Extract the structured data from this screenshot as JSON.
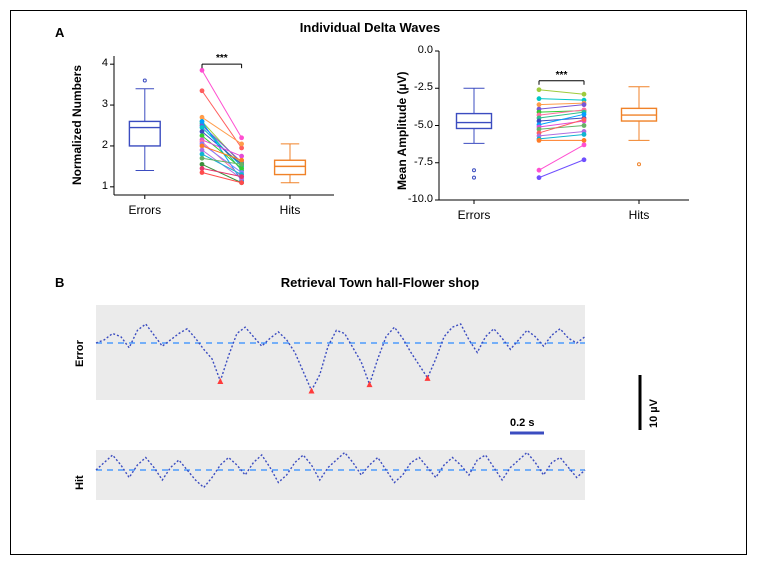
{
  "panelA": {
    "letter": "A",
    "title": "Individual Delta Waves",
    "sig_label": "***",
    "chartLeft": {
      "ylabel": "Normalized Numbers",
      "ymin": 0.8,
      "ymax": 4.2,
      "yticks": [
        1,
        2,
        3,
        4
      ],
      "categories": [
        "Errors",
        "Hits"
      ],
      "box_errors": {
        "q1": 2.0,
        "median": 2.45,
        "q3": 2.6,
        "whisker_low": 1.4,
        "whisker_high": 3.4,
        "outliers": [
          3.6
        ],
        "color": "#3b4cc0"
      },
      "box_hits": {
        "q1": 1.3,
        "median": 1.5,
        "q3": 1.65,
        "whisker_low": 1.1,
        "whisker_high": 2.05,
        "outliers": [],
        "color": "#f08228"
      },
      "lines": [
        {
          "e": 3.85,
          "h": 2.2,
          "c": "#ff4fd1"
        },
        {
          "e": 3.35,
          "h": 1.95,
          "c": "#ff5e5e"
        },
        {
          "e": 2.7,
          "h": 2.05,
          "c": "#ff9c4a"
        },
        {
          "e": 2.6,
          "h": 1.55,
          "c": "#9fcb3b"
        },
        {
          "e": 2.55,
          "h": 1.4,
          "c": "#2fbf8f"
        },
        {
          "e": 2.5,
          "h": 1.6,
          "c": "#7656d6"
        },
        {
          "e": 2.45,
          "h": 1.5,
          "c": "#00c7c7"
        },
        {
          "e": 2.35,
          "h": 1.55,
          "c": "#3b4cc0"
        },
        {
          "e": 2.6,
          "h": 1.15,
          "c": "#00a0ff"
        },
        {
          "e": 2.25,
          "h": 1.45,
          "c": "#32cd32"
        },
        {
          "e": 2.15,
          "h": 1.75,
          "c": "#e34bd6"
        },
        {
          "e": 2.1,
          "h": 1.25,
          "c": "#ff6fa0"
        },
        {
          "e": 2.05,
          "h": 1.35,
          "c": "#7f7fff"
        },
        {
          "e": 2.0,
          "h": 1.65,
          "c": "#ff7b25"
        },
        {
          "e": 1.9,
          "h": 1.2,
          "c": "#b06fe0"
        },
        {
          "e": 1.8,
          "h": 1.3,
          "c": "#0fb5d1"
        },
        {
          "e": 1.7,
          "h": 1.55,
          "c": "#66b266"
        },
        {
          "e": 1.55,
          "h": 1.1,
          "c": "#3b8f3b"
        },
        {
          "e": 1.45,
          "h": 1.25,
          "c": "#e6346e"
        },
        {
          "e": 1.35,
          "h": 1.1,
          "c": "#ff4b4b"
        }
      ]
    },
    "chartRight": {
      "ylabel": "Mean Amplitude  (µV)",
      "ymin": -10.0,
      "ymax": 0.0,
      "yticks": [
        -10.0,
        -7.5,
        -5.0,
        -2.5,
        0.0
      ],
      "categories": [
        "Errors",
        "Hits"
      ],
      "box_errors": {
        "q1": -5.2,
        "median": -4.8,
        "q3": -4.2,
        "whisker_low": -6.2,
        "whisker_high": -2.5,
        "outliers": [
          -8.0,
          -8.5
        ],
        "color": "#3b4cc0"
      },
      "box_hits": {
        "q1": -4.7,
        "median": -4.3,
        "q3": -3.85,
        "whisker_low": -6.0,
        "whisker_high": -2.4,
        "outliers": [
          -7.6
        ],
        "color": "#f08228"
      },
      "lines": [
        {
          "e": -2.6,
          "h": -2.9,
          "c": "#9fcb3b"
        },
        {
          "e": -3.2,
          "h": -3.3,
          "c": "#00c7c7"
        },
        {
          "e": -3.6,
          "h": -3.5,
          "c": "#ff9c4a"
        },
        {
          "e": -3.9,
          "h": -3.6,
          "c": "#7656d6"
        },
        {
          "e": -4.1,
          "h": -4.0,
          "c": "#32cd32"
        },
        {
          "e": -4.3,
          "h": -3.95,
          "c": "#ff6fa0"
        },
        {
          "e": -4.5,
          "h": -4.1,
          "c": "#2fbf8f"
        },
        {
          "e": -4.7,
          "h": -4.5,
          "c": "#3b4cc0"
        },
        {
          "e": -4.95,
          "h": -4.25,
          "c": "#00a0ff"
        },
        {
          "e": -5.1,
          "h": -4.7,
          "c": "#e34bd6"
        },
        {
          "e": -5.25,
          "h": -5.0,
          "c": "#66b266"
        },
        {
          "e": -5.5,
          "h": -4.6,
          "c": "#ff5e5e"
        },
        {
          "e": -5.7,
          "h": -5.4,
          "c": "#b06fe0"
        },
        {
          "e": -5.9,
          "h": -5.6,
          "c": "#0fb5d1"
        },
        {
          "e": -6.0,
          "h": -6.0,
          "c": "#ff7b25"
        },
        {
          "e": -8.0,
          "h": -6.3,
          "c": "#ff4fd1"
        },
        {
          "e": -8.5,
          "h": -7.3,
          "c": "#6f4fff"
        }
      ]
    }
  },
  "panelB": {
    "letter": "B",
    "title": "Retrieval Town hall-Flower shop",
    "row_labels": [
      "Error",
      "Hit"
    ],
    "time_scale_label": "0.2 s",
    "amp_scale_label": "10 µV",
    "wave_color": "#3b4cc0",
    "dash_color": "#2e8bff",
    "bg_color": "#ebebeb",
    "marker_color": "#ff3b3b",
    "error_wave": {
      "points": [
        0,
        2,
        6,
        4,
        -3,
        8,
        12,
        5,
        -2,
        2,
        6,
        9,
        3,
        -4,
        -10,
        -24,
        -8,
        6,
        10,
        4,
        -2,
        3,
        7,
        2,
        -6,
        -18,
        -30,
        -20,
        -2,
        8,
        6,
        -3,
        -12,
        -26,
        -10,
        4,
        10,
        3,
        -6,
        -14,
        -22,
        -10,
        4,
        10,
        12,
        2,
        -6,
        4,
        9,
        3,
        -4,
        2,
        8,
        4,
        -2,
        5,
        9,
        3,
        0,
        4
      ],
      "markers": [
        15,
        26,
        33,
        40
      ]
    },
    "hit_wave": {
      "points": [
        0,
        3,
        6,
        2,
        -3,
        2,
        5,
        1,
        -4,
        1,
        4,
        0,
        -4,
        -7,
        -3,
        2,
        5,
        2,
        -2,
        3,
        6,
        1,
        -5,
        -2,
        3,
        6,
        2,
        -4,
        1,
        4,
        7,
        3,
        -2,
        2,
        5,
        0,
        -5,
        -2,
        3,
        5,
        1,
        -3,
        2,
        5,
        2,
        -2,
        4,
        6,
        1,
        -4,
        1,
        4,
        7,
        3,
        -2,
        3,
        5,
        1,
        -3,
        0
      ],
      "markers": []
    }
  }
}
